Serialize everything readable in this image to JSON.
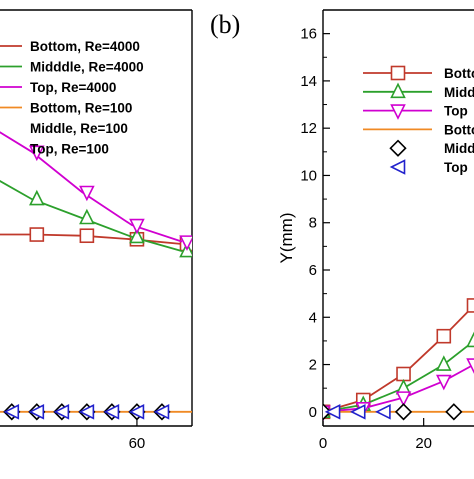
{
  "panel_b_label": "(b)",
  "chart_data": [
    {
      "panel": "a",
      "type": "line",
      "title": "",
      "xlabel": "",
      "ylabel": "",
      "xticks": [
        60
      ],
      "xlim": [
        -1.5,
        82
      ],
      "ylim": [
        -0.6,
        17.0
      ],
      "legend_position": "top-right",
      "colors": {
        "Bottom, Re=4000": "#c0392b",
        "Midddle, Re=4000": "#2ca02c",
        "Top, Re=4000": "#d000d0",
        "Bottom, Re=100": "#f08a24",
        "Middle, Re=100": "#000000",
        "Top, Re=100": "#2222cc"
      },
      "series": [
        {
          "name": "Bottom, Re=4000",
          "marker": "square",
          "line": true,
          "x": [
            -2,
            18,
            38,
            58,
            78
          ],
          "y": [
            7.5,
            7.5,
            7.45,
            7.3,
            7.1
          ],
          "marker_x": [
            0,
            20,
            40,
            60,
            80
          ]
        },
        {
          "name": "Midddle, Re=4000",
          "marker": "triangle-up",
          "line": true,
          "x": [
            -2,
            18,
            38,
            58,
            78
          ],
          "y": [
            10.2,
            9.0,
            8.2,
            7.4,
            6.8
          ],
          "marker_x": [
            0,
            20,
            40,
            60,
            80
          ]
        },
        {
          "name": "Top, Re=4000",
          "marker": "triangle-down",
          "line": true,
          "x": [
            -2,
            18,
            38,
            58,
            78
          ],
          "y": [
            12.3,
            11.0,
            9.3,
            7.9,
            7.2
          ],
          "marker_x": [
            0,
            20,
            40,
            60,
            80
          ]
        },
        {
          "name": "Bottom, Re=100",
          "marker": "none",
          "line": true,
          "x": [
            -2,
            82
          ],
          "y": [
            0,
            0
          ]
        },
        {
          "name": "Middle, Re=100",
          "marker": "diamond",
          "line": false,
          "x": [
            0,
            10,
            20,
            30,
            40,
            50,
            60,
            70
          ],
          "y": [
            0,
            0,
            0,
            0,
            0,
            0,
            0,
            0
          ]
        },
        {
          "name": "Top, Re=100",
          "marker": "triangle-left",
          "line": false,
          "x": [
            0,
            10,
            20,
            30,
            40,
            50,
            60,
            70
          ],
          "y": [
            0,
            0,
            0,
            0,
            0,
            0,
            0,
            0
          ]
        }
      ]
    },
    {
      "panel": "b",
      "type": "line",
      "title": "",
      "xlabel": "",
      "ylabel": "Y(mm)",
      "xticks": [
        0,
        20
      ],
      "yticks": [
        0,
        2,
        4,
        6,
        8,
        10,
        12,
        14,
        16
      ],
      "xlim": [
        0,
        30
      ],
      "ylim": [
        -0.6,
        17.0
      ],
      "legend_position": "top-right",
      "legend_labels": [
        "Botto",
        "Midd",
        "Top",
        "Botto",
        "Midd",
        "Top"
      ],
      "series": [
        {
          "name": "Bottom, Re=4000",
          "marker": "square",
          "line": true,
          "x": [
            0,
            8,
            16,
            24,
            30
          ],
          "y": [
            0,
            0.5,
            1.6,
            3.2,
            4.5
          ]
        },
        {
          "name": "Midddle, Re=4000",
          "marker": "triangle-up",
          "line": true,
          "x": [
            0,
            8,
            16,
            24,
            30
          ],
          "y": [
            0,
            0.3,
            1.0,
            2.0,
            3.0
          ]
        },
        {
          "name": "Top, Re=4000",
          "marker": "triangle-down",
          "line": true,
          "x": [
            0,
            8,
            16,
            24,
            30
          ],
          "y": [
            0,
            0.15,
            0.6,
            1.3,
            2.0
          ]
        },
        {
          "name": "Bottom, Re=100",
          "marker": "none",
          "line": true,
          "x": [
            0,
            30
          ],
          "y": [
            0,
            0
          ]
        },
        {
          "name": "Middle, Re=100",
          "marker": "diamond",
          "line": false,
          "x": [
            0,
            16,
            26
          ],
          "y": [
            0,
            0,
            0
          ]
        },
        {
          "name": "Top, Re=100",
          "marker": "triangle-left",
          "line": false,
          "x": [
            2,
            7,
            12
          ],
          "y": [
            0,
            0,
            0
          ]
        }
      ]
    }
  ]
}
